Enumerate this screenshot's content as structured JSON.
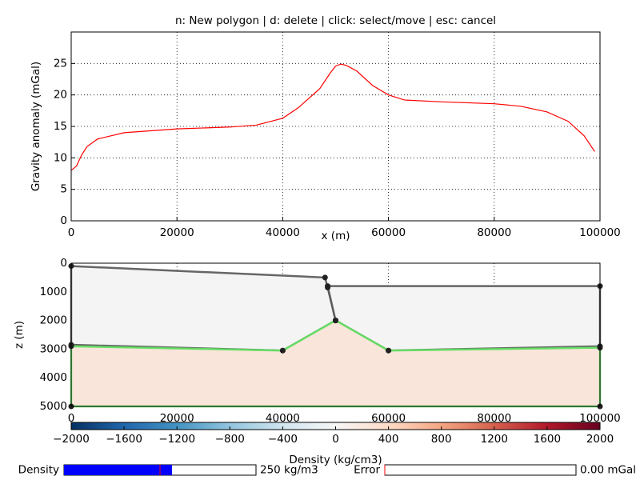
{
  "chart_data": [
    {
      "type": "line",
      "title": "n: New polygon | d: delete | click: select/move | esc: cancel",
      "xlabel": "x (m)",
      "ylabel": "Gravity anomaly (mGal)",
      "x": [
        0,
        1000,
        2000,
        3000,
        5000,
        10000,
        20000,
        30000,
        35000,
        40000,
        43000,
        47000,
        49000,
        50000,
        51000,
        52000,
        54000,
        57000,
        60000,
        63000,
        70000,
        80000,
        85000,
        90000,
        94000,
        97000,
        99000
      ],
      "values": [
        8,
        8.7,
        10.5,
        11.8,
        13.0,
        14.0,
        14.6,
        14.9,
        15.2,
        16.3,
        18.0,
        21.0,
        23.5,
        24.6,
        24.9,
        24.7,
        23.8,
        21.5,
        20.0,
        19.2,
        18.9,
        18.6,
        18.2,
        17.3,
        15.8,
        13.5,
        11.0
      ],
      "color": "#ff0000",
      "xlim": [
        0,
        100000
      ],
      "xticks": [
        0,
        20000,
        40000,
        60000,
        80000,
        100000
      ],
      "ylim": [
        0,
        30
      ],
      "yticks": [
        0,
        5,
        10,
        15,
        20,
        25
      ],
      "grid": true
    },
    {
      "type": "polygon",
      "ylabel": "z (m)",
      "xlim": [
        0,
        100000
      ],
      "xticks": [
        0,
        20000,
        40000,
        60000,
        80000,
        100000
      ],
      "ylim": [
        5000,
        0
      ],
      "yticks": [
        0,
        1000,
        2000,
        3000,
        4000,
        5000
      ],
      "grid": true,
      "polygons": [
        {
          "fill": "#f3f4f3",
          "edge": "#555555",
          "x": [
            0,
            48000,
            48500,
            50000,
            40000,
            0
          ],
          "z": [
            100,
            500,
            850,
            2000,
            3050,
            2850
          ]
        },
        {
          "fill": "#f3f4f3",
          "edge": "#555555",
          "x": [
            48500,
            100000,
            100000,
            60000,
            50000
          ],
          "z": [
            800,
            800,
            2900,
            3050,
            2000
          ]
        },
        {
          "fill": "#f9e5da",
          "edge": "#5de05d",
          "x": [
            0,
            40000,
            50000,
            60000,
            100000,
            100000,
            0
          ],
          "z": [
            2900,
            3050,
            2000,
            3050,
            2950,
            5000,
            5000
          ]
        }
      ]
    },
    {
      "type": "colorbar",
      "xlabel": "Density (kg/cm3)",
      "xlim": [
        -2000,
        2000
      ],
      "xticks": [
        {
          "value": -2000,
          "label": "−2000"
        },
        {
          "value": -1600,
          "label": "−1600"
        },
        {
          "value": -1200,
          "label": "−1200"
        },
        {
          "value": -800,
          "label": "−800"
        },
        {
          "value": -400,
          "label": "−400"
        },
        0,
        400,
        800,
        1200,
        1600,
        2000
      ],
      "colormap": [
        "#053061",
        "#2166ac",
        "#4393c3",
        "#92c5de",
        "#d1e5f0",
        "#f7f7f7",
        "#fddbc7",
        "#f4a582",
        "#d6604d",
        "#b2182b",
        "#67001f"
      ]
    }
  ],
  "sliders": [
    {
      "label": "Density",
      "value": 250,
      "value_label": "250 kg/m3",
      "lim": [
        -2000,
        2000
      ],
      "initial": 0,
      "color": "#0000ff"
    },
    {
      "label": "Error",
      "value": 0,
      "value_label": "0.00 mGal",
      "lim": [
        0,
        5
      ],
      "initial": 0,
      "color": "#0000ff"
    }
  ]
}
